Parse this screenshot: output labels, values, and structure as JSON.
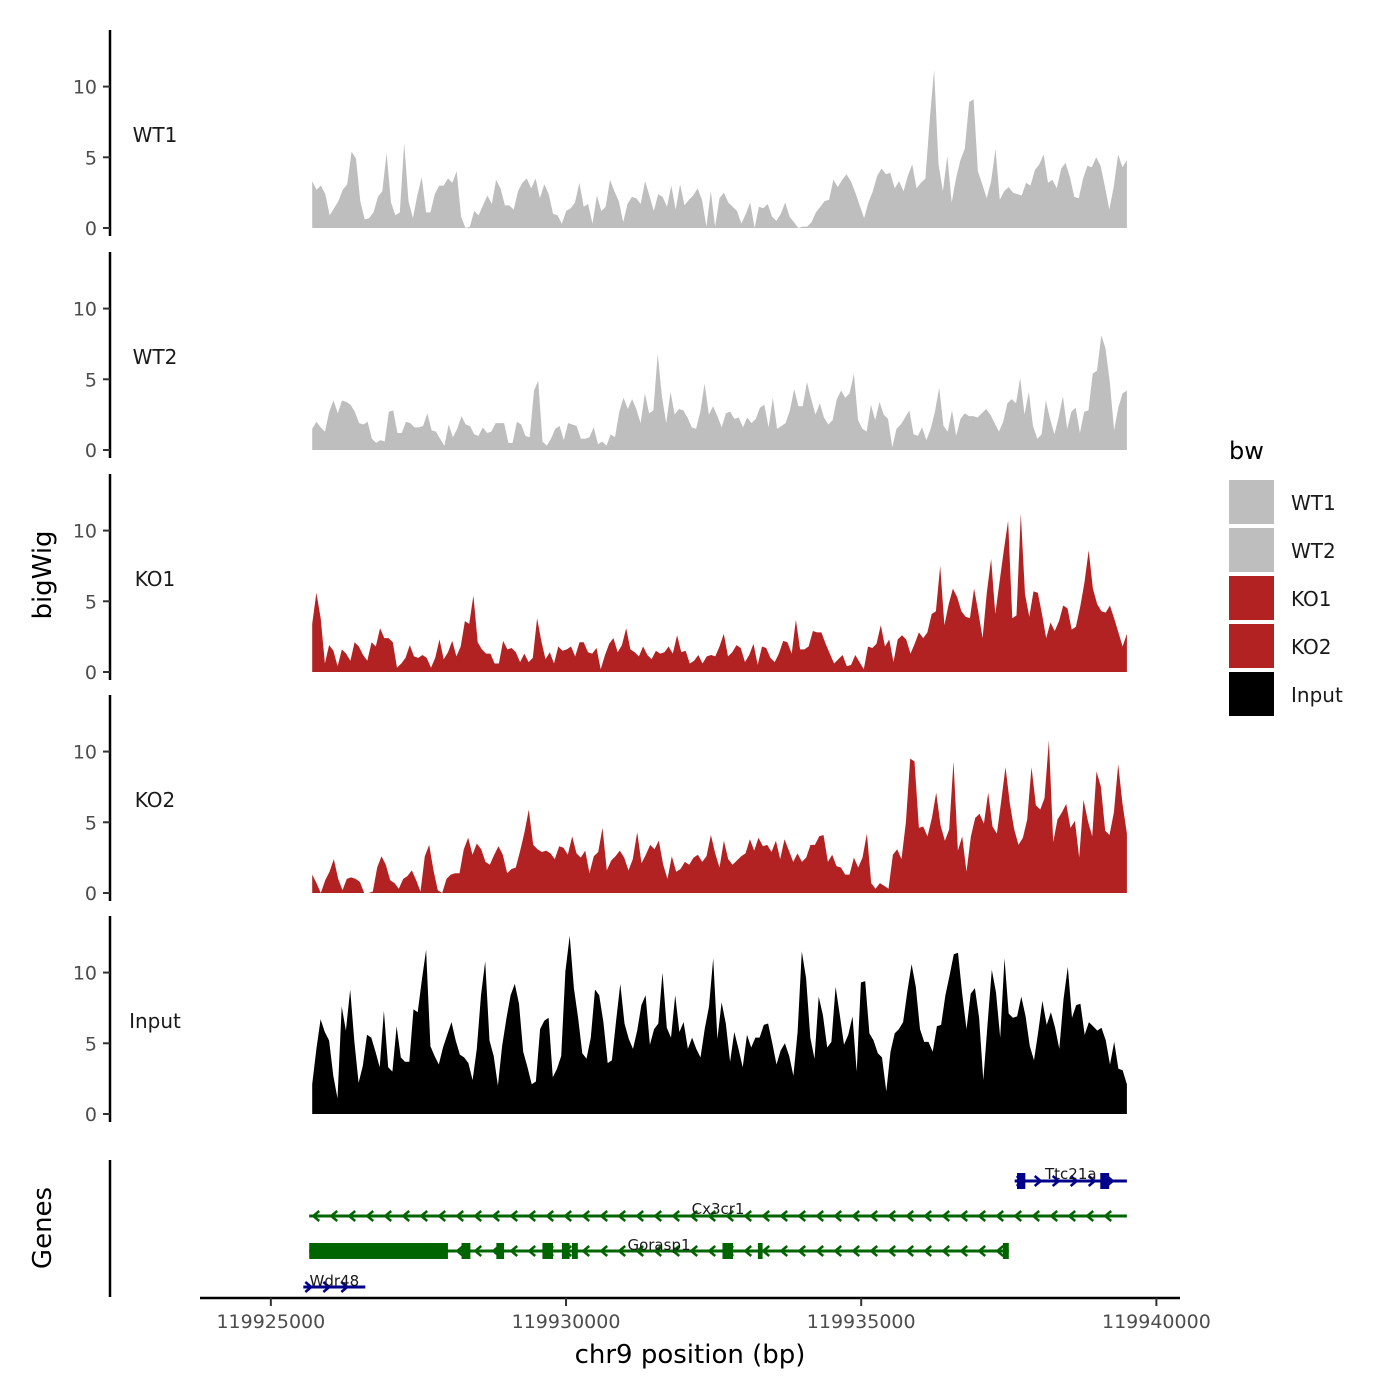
{
  "chart_data": {
    "type": "area",
    "title": "",
    "xlabel": "chr9 position (bp)",
    "ylabel": "bigWig",
    "xlim": [
      119923800,
      119940400
    ],
    "ylim": [
      0,
      14
    ],
    "data_range": [
      119925700,
      119939500
    ],
    "x_ticks": [
      119925000,
      119930000,
      119935000,
      119940000
    ],
    "x_tick_labels": [
      "119925000",
      "119930000",
      "119935000",
      "119940000"
    ],
    "y_ticks": [
      0,
      5,
      10
    ],
    "y_tick_labels": [
      "0",
      "5",
      "10"
    ],
    "legend": {
      "title": "bw",
      "position": "right",
      "entries": [
        {
          "label": "WT1",
          "color": "#bebebe"
        },
        {
          "label": "WT2",
          "color": "#bebebe"
        },
        {
          "label": "KO1",
          "color": "#b22222"
        },
        {
          "label": "KO2",
          "color": "#b22222"
        },
        {
          "label": "Input",
          "color": "#000000"
        }
      ]
    },
    "series": [
      {
        "name": "WT1",
        "color": "#bebebe",
        "values": [
          3.3,
          2.7,
          3.0,
          2.4,
          0.9,
          1.4,
          1.9,
          2.7,
          3.1,
          5.4,
          4.9,
          1.9,
          0.6,
          0.7,
          1.1,
          2.2,
          2.6,
          5.3,
          1.8,
          0.9,
          1.1,
          6.0,
          1.9,
          0.7,
          2.3,
          3.6,
          1.1,
          1.1,
          2.4,
          3.0,
          3.0,
          3.5,
          3.2,
          4.0,
          0.8,
          0.0,
          0.1,
          1.2,
          0.9,
          1.6,
          2.3,
          1.7,
          3.4,
          2.8,
          1.6,
          1.6,
          1.3,
          2.6,
          3.2,
          3.5,
          2.8,
          3.5,
          2.1,
          3.1,
          2.4,
          1.0,
          0.9,
          0.3,
          1.2,
          1.4,
          1.8,
          3.2,
          1.5,
          1.7,
          0.3,
          2.3,
          1.2,
          1.5,
          3.4,
          2.6,
          1.9,
          0.4,
          1.7,
          2.2,
          2.1,
          1.7,
          3.3,
          2.3,
          1.2,
          2.4,
          2.2,
          1.5,
          3.0,
          1.3,
          3.1,
          1.6,
          2.0,
          2.3,
          2.8,
          2.0,
          0.1,
          2.6,
          0.1,
          2.1,
          2.5,
          1.8,
          1.5,
          1.2,
          0.3,
          1.0,
          1.8,
          0.0,
          1.5,
          1.4,
          1.7,
          0.8,
          0.5,
          1.0,
          1.8,
          0.8,
          0.4,
          0.0,
          0.1,
          0.1,
          0.4,
          1.1,
          1.5,
          1.9,
          2.0,
          3.4,
          2.9,
          3.4,
          3.8,
          3.3,
          2.5,
          1.6,
          0.7,
          1.8,
          2.6,
          3.7,
          4.2,
          3.8,
          3.9,
          2.8,
          3.3,
          2.6,
          3.7,
          4.5,
          2.8,
          3.2,
          3.5,
          7.7,
          11.2,
          4.5,
          2.6,
          5.1,
          1.8,
          3.5,
          4.8,
          5.6,
          8.9,
          9.1,
          4.0,
          3.1,
          2.1,
          3.3,
          5.6,
          2.0,
          2.6,
          2.9,
          2.5,
          2.4,
          2.3,
          3.2,
          3.0,
          4.1,
          4.5,
          5.2,
          3.2,
          3.4,
          2.8,
          4.2,
          4.6,
          3.6,
          2.2,
          2.1,
          3.5,
          4.4,
          4.3,
          5.0,
          4.4,
          2.9,
          1.3,
          2.9,
          5.2,
          4.3,
          4.8
        ]
      },
      {
        "name": "WT2",
        "color": "#bebebe",
        "values": [
          1.5,
          2.0,
          1.6,
          1.3,
          2.7,
          3.5,
          2.6,
          3.5,
          3.4,
          3.2,
          2.7,
          1.9,
          1.8,
          2.0,
          0.8,
          0.5,
          0.7,
          0.6,
          2.7,
          2.8,
          1.2,
          1.2,
          2.0,
          1.9,
          1.6,
          1.6,
          1.7,
          2.6,
          1.4,
          1.3,
          0.8,
          0.3,
          1.8,
          0.9,
          1.5,
          2.4,
          1.8,
          1.7,
          1.1,
          1.0,
          1.6,
          1.2,
          1.3,
          1.9,
          1.9,
          1.9,
          0.5,
          0.5,
          2.0,
          1.8,
          1.0,
          0.9,
          4.2,
          4.9,
          0.6,
          0.3,
          0.8,
          1.5,
          1.7,
          0.7,
          1.9,
          1.8,
          1.7,
          0.8,
          0.8,
          0.9,
          1.6,
          0.4,
          0.6,
          0.3,
          1.1,
          0.9,
          2.7,
          3.7,
          2.9,
          3.6,
          2.9,
          1.9,
          4.0,
          2.6,
          2.8,
          6.8,
          3.8,
          1.9,
          4.1,
          2.5,
          2.9,
          2.8,
          2.3,
          1.6,
          1.5,
          2.7,
          4.7,
          2.5,
          3.1,
          2.4,
          1.6,
          2.6,
          2.7,
          2.2,
          2.3,
          1.6,
          2.3,
          1.9,
          2.2,
          3.0,
          3.2,
          1.6,
          3.7,
          1.5,
          1.7,
          1.9,
          2.8,
          4.3,
          3.1,
          3.1,
          4.8,
          3.6,
          2.5,
          3.3,
          2.3,
          1.8,
          2.1,
          3.6,
          4.2,
          3.7,
          4.0,
          5.4,
          2.1,
          1.5,
          1.3,
          3.2,
          2.1,
          3.4,
          2.5,
          2.2,
          0.2,
          1.5,
          1.8,
          2.3,
          2.8,
          1.1,
          1.0,
          1.6,
          0.7,
          1.5,
          2.7,
          4.4,
          1.7,
          1.3,
          2.8,
          1.0,
          2.2,
          2.6,
          2.4,
          2.4,
          2.3,
          2.6,
          2.9,
          2.5,
          1.9,
          1.3,
          2.0,
          3.3,
          3.6,
          3.3,
          5.1,
          2.5,
          4.1,
          1.7,
          0.8,
          1.1,
          3.5,
          2.2,
          1.1,
          2.3,
          3.8,
          1.5,
          2.7,
          3.0,
          1.2,
          2.7,
          2.8,
          5.4,
          5.6,
          8.1,
          7.2,
          4.8,
          1.4,
          3.0,
          4.0,
          4.2
        ]
      },
      {
        "name": "KO1",
        "color": "#b22222",
        "values": [
          3.4,
          5.6,
          3.8,
          0.6,
          1.9,
          1.5,
          0.4,
          1.6,
          1.3,
          0.8,
          2.1,
          1.8,
          1.2,
          0.8,
          2.1,
          1.8,
          3.1,
          2.4,
          2.4,
          2.1,
          0.3,
          0.6,
          1.0,
          1.9,
          1.1,
          1.0,
          1.2,
          1.0,
          0.3,
          1.0,
          2.3,
          0.9,
          1.4,
          2.2,
          1.1,
          1.8,
          3.6,
          3.4,
          5.4,
          2.1,
          1.6,
          1.3,
          1.3,
          0.6,
          0.6,
          2.2,
          1.6,
          1.7,
          1.4,
          0.7,
          1.3,
          0.7,
          1.0,
          3.8,
          2.2,
          0.9,
          1.4,
          0.6,
          1.8,
          1.5,
          1.6,
          1.8,
          1.1,
          2.1,
          2.1,
          1.4,
          1.3,
          1.7,
          0.2,
          1.2,
          2.0,
          2.4,
          1.4,
          1.9,
          3.1,
          1.6,
          1.4,
          1.1,
          1.8,
          1.2,
          0.9,
          1.5,
          1.3,
          1.4,
          1.8,
          1.3,
          2.6,
          1.4,
          1.5,
          0.6,
          0.8,
          1.2,
          0.6,
          1.1,
          1.2,
          1.1,
          1.8,
          2.7,
          1.1,
          1.4,
          1.9,
          1.7,
          0.7,
          1.2,
          2.0,
          0.5,
          1.8,
          1.7,
          1.0,
          0.7,
          1.3,
          2.2,
          2.1,
          1.3,
          3.7,
          1.6,
          1.6,
          1.8,
          2.9,
          2.8,
          2.8,
          2.0,
          1.3,
          0.6,
          0.9,
          1.2,
          0.4,
          0.5,
          1.2,
          0.7,
          0.2,
          1.8,
          1.7,
          2.0,
          3.3,
          1.8,
          2.3,
          0.7,
          2.3,
          2.6,
          2.3,
          1.3,
          2.0,
          2.8,
          2.4,
          2.8,
          4.1,
          4.3,
          7.5,
          3.3,
          4.8,
          5.9,
          5.3,
          4.3,
          3.9,
          3.8,
          5.9,
          4.2,
          2.4,
          5.6,
          8.0,
          4.1,
          6.4,
          8.6,
          10.7,
          3.8,
          4.0,
          11.2,
          5.5,
          3.9,
          5.7,
          5.6,
          4.1,
          2.4,
          3.5,
          2.9,
          3.6,
          4.7,
          4.5,
          3.0,
          3.2,
          4.6,
          6.3,
          8.6,
          5.9,
          4.8,
          4.3,
          4.2,
          4.7,
          3.8,
          2.8,
          1.8,
          2.7
        ]
      },
      {
        "name": "KO2",
        "color": "#b22222",
        "values": [
          1.3,
          0.7,
          0.0,
          0.9,
          1.5,
          2.4,
          1.0,
          0.2,
          1.0,
          1.1,
          1.0,
          0.8,
          0.0,
          0.0,
          0.1,
          1.8,
          2.6,
          2.0,
          0.9,
          0.7,
          0.3,
          1.0,
          1.2,
          1.6,
          0.9,
          0.1,
          2.6,
          3.4,
          1.6,
          0.2,
          0.0,
          1.0,
          1.3,
          1.4,
          1.4,
          3.1,
          3.9,
          2.7,
          3.5,
          3.1,
          2.2,
          2.0,
          2.7,
          3.3,
          2.7,
          1.4,
          1.7,
          1.8,
          3.0,
          4.3,
          5.9,
          3.4,
          3.1,
          2.9,
          3.0,
          2.8,
          2.4,
          3.3,
          3.2,
          2.7,
          4.0,
          2.8,
          2.5,
          3.0,
          1.4,
          2.6,
          2.9,
          4.6,
          1.6,
          2.3,
          2.6,
          3.0,
          2.5,
          1.6,
          2.4,
          4.3,
          2.1,
          2.7,
          3.4,
          3.1,
          3.7,
          2.0,
          1.0,
          2.6,
          1.5,
          1.7,
          2.2,
          2.0,
          2.5,
          2.7,
          2.2,
          2.6,
          4.1,
          2.8,
          1.8,
          3.7,
          2.4,
          2.0,
          2.3,
          2.6,
          2.8,
          3.8,
          3.0,
          3.9,
          3.3,
          3.4,
          2.9,
          3.7,
          2.4,
          3.8,
          3.0,
          2.2,
          2.8,
          2.2,
          2.5,
          3.4,
          3.4,
          4.0,
          4.1,
          2.2,
          2.7,
          1.9,
          1.8,
          1.3,
          1.3,
          2.5,
          1.8,
          2.5,
          4.2,
          0.7,
          0.3,
          0.7,
          0.5,
          0.3,
          2.7,
          3.1,
          2.4,
          5.0,
          9.5,
          9.3,
          4.6,
          4.7,
          4.0,
          5.3,
          7.1,
          4.8,
          3.7,
          4.5,
          9.3,
          3.0,
          4.0,
          1.5,
          4.0,
          5.3,
          5.6,
          4.9,
          7.1,
          4.7,
          4.2,
          6.5,
          8.9,
          6.3,
          4.5,
          3.4,
          3.9,
          5.2,
          8.9,
          6.2,
          5.9,
          6.7,
          10.8,
          3.6,
          5.2,
          5.7,
          6.3,
          4.6,
          5.1,
          2.5,
          6.6,
          5.1,
          4.0,
          8.6,
          7.5,
          4.4,
          4.1,
          5.7,
          9.1,
          6.3,
          4.2
        ]
      },
      {
        "name": "Input",
        "color": "#000000",
        "values": [
          2.1,
          4.6,
          6.7,
          5.8,
          5.2,
          2.7,
          1.1,
          7.6,
          5.9,
          8.8,
          5.1,
          2.2,
          3.4,
          5.6,
          5.4,
          4.4,
          3.3,
          7.3,
          3.3,
          3.0,
          6.2,
          4.0,
          3.7,
          3.7,
          7.4,
          7.2,
          9.5,
          11.6,
          4.8,
          4.1,
          3.5,
          4.7,
          5.6,
          6.5,
          5.2,
          4.2,
          4.0,
          3.6,
          2.4,
          4.6,
          8.4,
          10.8,
          5.2,
          4.1,
          2.0,
          4.8,
          6.7,
          8.4,
          9.2,
          7.8,
          4.4,
          3.3,
          2.1,
          2.3,
          6.0,
          6.6,
          6.8,
          2.6,
          3.2,
          4.1,
          10.1,
          12.6,
          8.9,
          6.8,
          4.3,
          3.9,
          5.4,
          8.8,
          8.4,
          6.5,
          3.6,
          3.8,
          6.6,
          9.2,
          6.4,
          5.3,
          4.6,
          5.9,
          7.7,
          8.4,
          4.9,
          6.0,
          6.4,
          10.0,
          6.1,
          5.4,
          8.4,
          5.8,
          6.5,
          4.6,
          5.4,
          4.6,
          4.0,
          6.0,
          7.6,
          11.0,
          5.3,
          7.9,
          6.4,
          3.7,
          5.8,
          4.6,
          3.3,
          5.6,
          4.7,
          5.4,
          5.4,
          6.3,
          6.4,
          5.0,
          3.5,
          4.5,
          5.0,
          4.1,
          2.7,
          5.8,
          11.5,
          9.6,
          5.4,
          3.9,
          8.3,
          7.0,
          4.7,
          5.1,
          9.0,
          7.0,
          4.9,
          5.6,
          6.9,
          3.0,
          9.3,
          9.4,
          5.7,
          5.2,
          4.3,
          4.0,
          1.6,
          4.4,
          5.7,
          6.0,
          6.5,
          8.7,
          10.6,
          9.0,
          6.0,
          5.1,
          5.1,
          4.4,
          6.2,
          6.3,
          8.4,
          9.8,
          11.3,
          11.4,
          8.5,
          6.0,
          8.5,
          8.9,
          6.8,
          2.4,
          6.4,
          10.2,
          8.6,
          5.4,
          11.0,
          7.1,
          6.8,
          6.9,
          8.3,
          6.9,
          4.8,
          3.8,
          5.8,
          8.0,
          6.3,
          7.2,
          6.1,
          4.6,
          8.1,
          10.4,
          6.8,
          7.7,
          7.8,
          5.6,
          6.5,
          6.2,
          5.9,
          6.1,
          5.2,
          3.5,
          5.1,
          3.2,
          3.1,
          2.1
        ]
      }
    ],
    "genes": {
      "label": "Genes",
      "items": [
        {
          "name": "Ttc21a",
          "strand": "+",
          "color": "#00008b",
          "start": 119937600,
          "end": 119939500,
          "exons": [
            [
              119937640,
              119937780
            ],
            [
              119939050,
              119939200
            ]
          ]
        },
        {
          "name": "Cx3cr1",
          "strand": "-",
          "color": "#006400",
          "start": 119925650,
          "end": 119939500,
          "exons": []
        },
        {
          "name": "Gorasp1",
          "strand": "-",
          "color": "#006400",
          "start": 119925650,
          "end": 119937500,
          "exons": [
            [
              119925650,
              119928000
            ],
            [
              119928230,
              119928380
            ],
            [
              119928820,
              119928950
            ],
            [
              119929600,
              119929780
            ],
            [
              119929930,
              119930060
            ],
            [
              119930100,
              119930200
            ],
            [
              119932650,
              119932830
            ],
            [
              119933250,
              119933330
            ],
            [
              119937400,
              119937500
            ]
          ]
        },
        {
          "name": "Wdr48",
          "strand": "+",
          "color": "#00008b",
          "start": 119925550,
          "end": 119926600,
          "exons": []
        }
      ]
    }
  }
}
